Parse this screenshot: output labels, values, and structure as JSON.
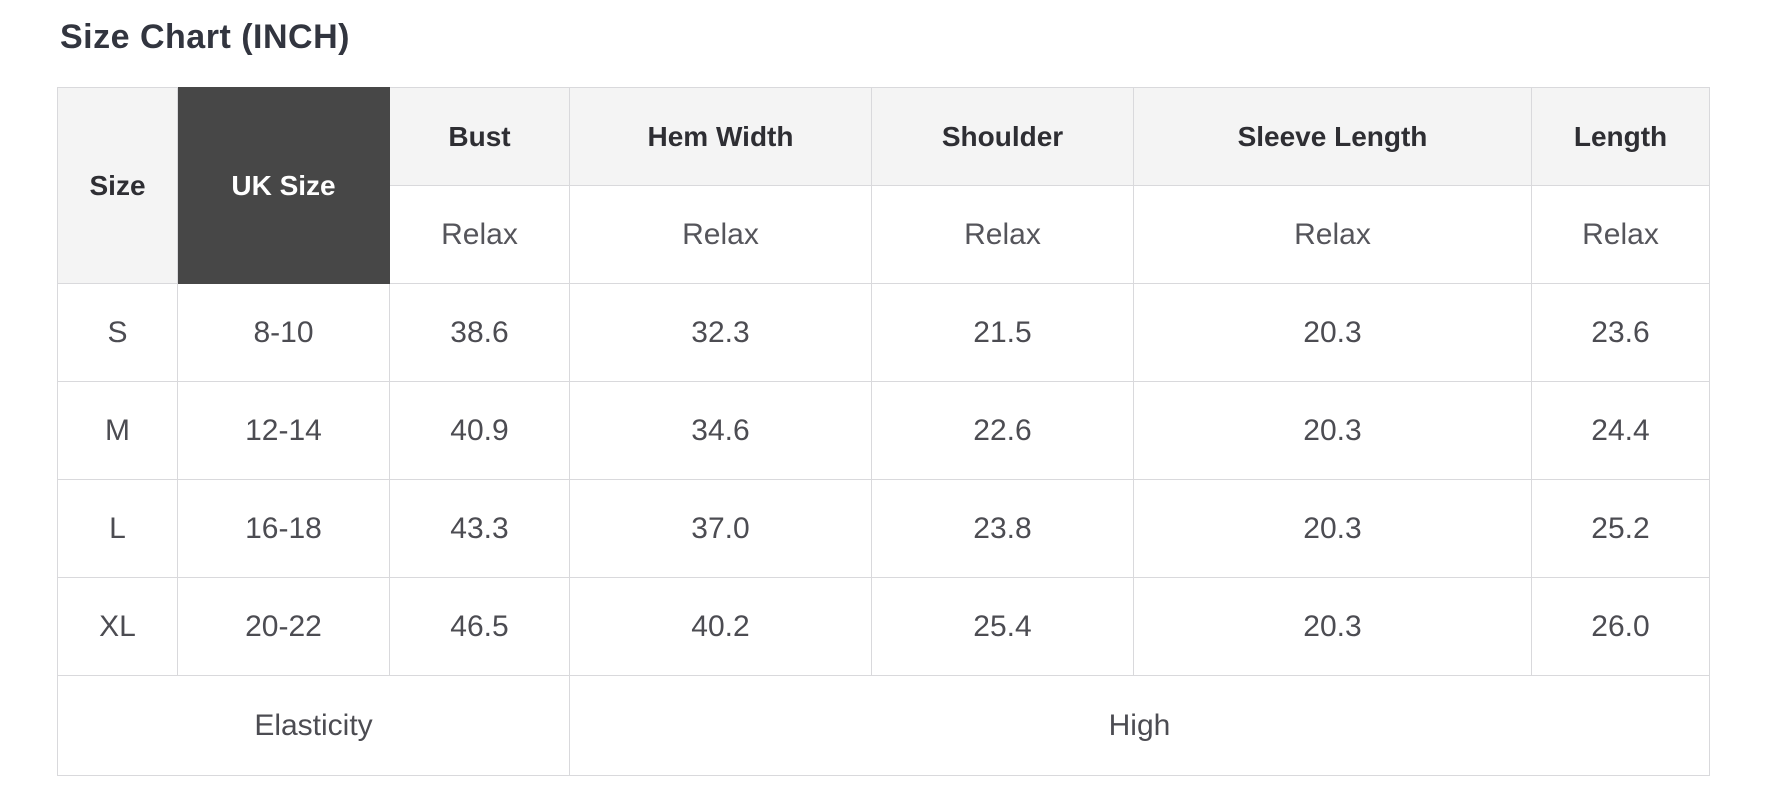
{
  "title": "Size Chart (INCH)",
  "table": {
    "corner_header": "Size",
    "uk_header": "UK Size",
    "measure_headers": [
      "Bust",
      "Hem Width",
      "Shoulder",
      "Sleeve Length",
      "Length"
    ],
    "fit_labels": [
      "Relax",
      "Relax",
      "Relax",
      "Relax",
      "Relax"
    ],
    "rows": [
      {
        "size": "S",
        "uk_size": "8-10",
        "values": [
          "38.6",
          "32.3",
          "21.5",
          "20.3",
          "23.6"
        ]
      },
      {
        "size": "M",
        "uk_size": "12-14",
        "values": [
          "40.9",
          "34.6",
          "22.6",
          "20.3",
          "24.4"
        ]
      },
      {
        "size": "L",
        "uk_size": "16-18",
        "values": [
          "43.3",
          "37.0",
          "23.8",
          "20.3",
          "25.2"
        ]
      },
      {
        "size": "XL",
        "uk_size": "20-22",
        "values": [
          "46.5",
          "40.2",
          "25.4",
          "20.3",
          "26.0"
        ]
      }
    ],
    "footer": {
      "label": "Elasticity",
      "value": "High"
    }
  },
  "colors": {
    "uk_cell_background": "#474747",
    "uk_cell_text": "#ffffff",
    "header_background": "#f4f4f4",
    "border": "#d9d9dc",
    "body_text": "#4c4c52",
    "title_text": "#32353f"
  },
  "chart_data": {
    "type": "table",
    "title": "Size Chart (INCH)",
    "unit": "INCH",
    "columns": [
      "Size",
      "UK Size",
      "Bust (Relax)",
      "Hem Width (Relax)",
      "Shoulder (Relax)",
      "Sleeve Length (Relax)",
      "Length (Relax)"
    ],
    "rows": [
      [
        "S",
        "8-10",
        38.6,
        32.3,
        21.5,
        20.3,
        23.6
      ],
      [
        "M",
        "12-14",
        40.9,
        34.6,
        22.6,
        20.3,
        24.4
      ],
      [
        "L",
        "16-18",
        43.3,
        37.0,
        23.8,
        20.3,
        25.2
      ],
      [
        "XL",
        "20-22",
        46.5,
        40.2,
        25.4,
        20.3,
        26.0
      ]
    ],
    "footer": {
      "Elasticity": "High"
    }
  }
}
